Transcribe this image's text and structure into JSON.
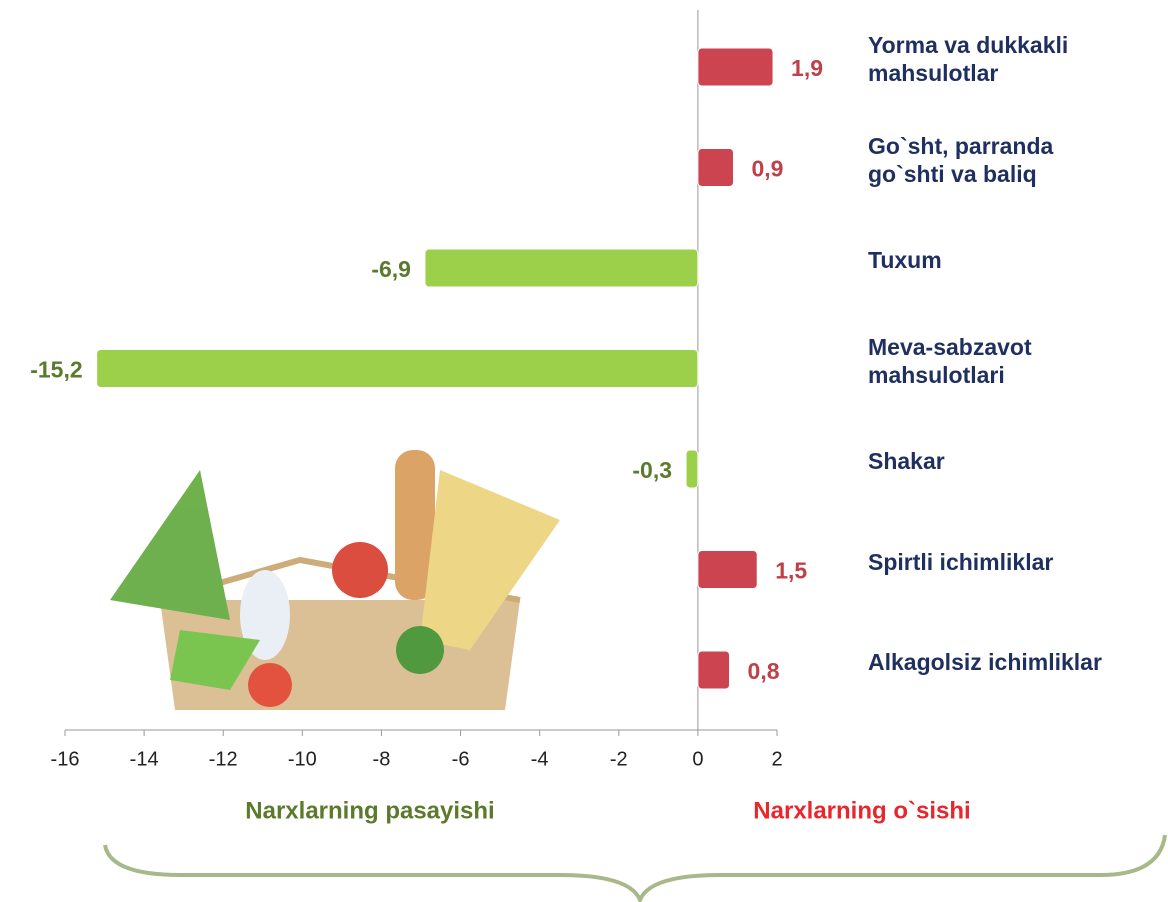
{
  "chart_data": {
    "type": "hbar",
    "categories": [
      "Yorma va dukkakli\nmahsulotlar",
      "Go`sht, parranda\ngo`shti va baliq",
      "Tuxum",
      "Meva-sabzavot\nmahsulotlari",
      "Shakar",
      "Spirtli ichimliklar",
      "Alkagolsiz ichimliklar"
    ],
    "values": [
      1.9,
      0.9,
      -6.9,
      -15.2,
      -0.3,
      1.5,
      0.8
    ],
    "value_labels": [
      "1,9",
      "0,9",
      "-6,9",
      "-15,2",
      "-0,3",
      "1,5",
      "0,8"
    ],
    "colors": [
      "#cc4450",
      "#cc4450",
      "#9ccf4a",
      "#9ccf4a",
      "#9ccf4a",
      "#cc4450",
      "#cc4450"
    ],
    "label_colors": [
      "#c0404a",
      "#c0404a",
      "#5b7a2c",
      "#5b7a2c",
      "#5b7a2c",
      "#c0404a",
      "#c0404a"
    ],
    "xlim": [
      -16,
      2
    ],
    "xticks": [
      -16,
      -14,
      -12,
      -10,
      -8,
      -6,
      -4,
      -2,
      0,
      2
    ],
    "annotations": [
      {
        "text": "Narxlarning pasayishi",
        "color": "#5b7a2c"
      },
      {
        "text": "Narxlarning o`sishi",
        "color": "#e8262c"
      }
    ]
  }
}
